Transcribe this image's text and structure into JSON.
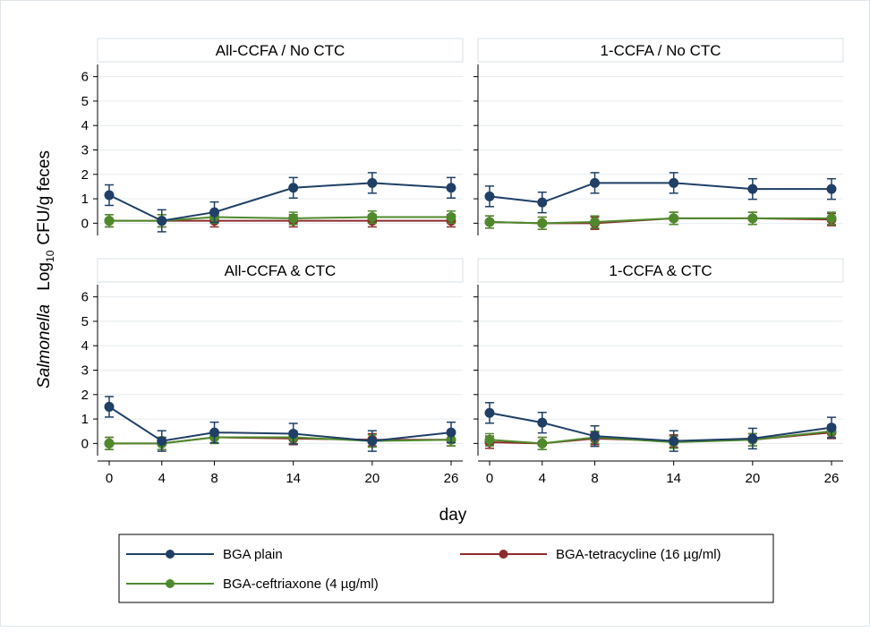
{
  "figure": {
    "ylabel_prefix": "Salmonella",
    "ylabel_log": "Log",
    "ylabel_sub": "10",
    "ylabel_suffix": "CFU/g feces",
    "xlabel": "day"
  },
  "colors": {
    "BGA plain": "#1f3f66",
    "BGA-tetracycline (16 µg/ml)": "#8c2b2b",
    "BGA-ceftriaxone (4 µg/ml)": "#4e8a2c"
  },
  "legend": [
    {
      "name": "BGA plain"
    },
    {
      "name": "BGA-tetracycline (16 µg/ml)"
    },
    {
      "name": "BGA-ceftriaxone (4 µg/ml)"
    }
  ],
  "chart_data": [
    {
      "type": "line",
      "title": "All-CCFA / No CTC",
      "x": [
        0,
        4,
        8,
        14,
        20,
        26
      ],
      "xticks": [
        "0",
        "4",
        "8",
        "14",
        "20",
        "26"
      ],
      "ylim": [
        -0.5,
        6.5
      ],
      "yticks": [
        "0",
        "1",
        "2",
        "3",
        "4",
        "5",
        "6"
      ],
      "grid": true,
      "series": [
        {
          "name": "BGA plain",
          "values": [
            1.15,
            0.1,
            0.45,
            1.45,
            1.65,
            1.45
          ],
          "err": [
            0.42,
            0.45,
            0.42,
            0.42,
            0.42,
            0.42
          ]
        },
        {
          "name": "BGA-tetracycline (16 µg/ml)",
          "values": [
            0.1,
            0.1,
            0.1,
            0.1,
            0.1,
            0.1
          ],
          "err": [
            0.25,
            0.25,
            0.25,
            0.25,
            0.25,
            0.25
          ]
        },
        {
          "name": "BGA-ceftriaxone (4 µg/ml)",
          "values": [
            0.1,
            0.1,
            0.25,
            0.2,
            0.25,
            0.25
          ],
          "err": [
            0.25,
            0.25,
            0.25,
            0.25,
            0.25,
            0.25
          ]
        }
      ]
    },
    {
      "type": "line",
      "title": "1-CCFA / No CTC",
      "x": [
        0,
        4,
        8,
        14,
        20,
        26
      ],
      "xticks": [
        "0",
        "4",
        "8",
        "14",
        "20",
        "26"
      ],
      "ylim": [
        -0.5,
        6.5
      ],
      "yticks": [
        "0",
        "1",
        "2",
        "3",
        "4",
        "5",
        "6"
      ],
      "grid": true,
      "series": [
        {
          "name": "BGA plain",
          "values": [
            1.1,
            0.85,
            1.65,
            1.65,
            1.4,
            1.4
          ],
          "err": [
            0.42,
            0.42,
            0.42,
            0.42,
            0.42,
            0.42
          ]
        },
        {
          "name": "BGA-tetracycline (16 µg/ml)",
          "values": [
            0.05,
            0.0,
            0.0,
            0.2,
            0.2,
            0.15
          ],
          "err": [
            0.25,
            0.25,
            0.25,
            0.25,
            0.25,
            0.25
          ]
        },
        {
          "name": "BGA-ceftriaxone (4 µg/ml)",
          "values": [
            0.05,
            0.0,
            0.05,
            0.2,
            0.2,
            0.2
          ],
          "err": [
            0.25,
            0.25,
            0.25,
            0.25,
            0.25,
            0.25
          ]
        }
      ]
    },
    {
      "type": "line",
      "title": "All-CCFA & CTC",
      "x": [
        0,
        4,
        8,
        14,
        20,
        26
      ],
      "xticks": [
        "0",
        "4",
        "8",
        "14",
        "20",
        "26"
      ],
      "ylim": [
        -0.5,
        6.5
      ],
      "yticks": [
        "0",
        "1",
        "2",
        "3",
        "4",
        "5",
        "6"
      ],
      "grid": true,
      "series": [
        {
          "name": "BGA plain",
          "values": [
            1.5,
            0.1,
            0.45,
            0.4,
            0.1,
            0.45
          ],
          "err": [
            0.42,
            0.42,
            0.42,
            0.42,
            0.42,
            0.42
          ]
        },
        {
          "name": "BGA-tetracycline (16 µg/ml)",
          "values": [
            0.0,
            0.0,
            0.25,
            0.2,
            0.15,
            0.15
          ],
          "err": [
            0.25,
            0.25,
            0.25,
            0.25,
            0.25,
            0.25
          ]
        },
        {
          "name": "BGA-ceftriaxone (4 µg/ml)",
          "values": [
            0.0,
            0.0,
            0.25,
            0.25,
            0.1,
            0.15
          ],
          "err": [
            0.25,
            0.25,
            0.25,
            0.25,
            0.25,
            0.25
          ]
        }
      ]
    },
    {
      "type": "line",
      "title": "1-CCFA & CTC",
      "x": [
        0,
        4,
        8,
        14,
        20,
        26
      ],
      "xticks": [
        "0",
        "4",
        "8",
        "14",
        "20",
        "26"
      ],
      "ylim": [
        -0.5,
        6.5
      ],
      "yticks": [
        "0",
        "1",
        "2",
        "3",
        "4",
        "5",
        "6"
      ],
      "grid": true,
      "series": [
        {
          "name": "BGA plain",
          "values": [
            1.25,
            0.85,
            0.3,
            0.1,
            0.2,
            0.65
          ],
          "err": [
            0.42,
            0.42,
            0.42,
            0.42,
            0.42,
            0.42
          ]
        },
        {
          "name": "BGA-tetracycline (16 µg/ml)",
          "values": [
            0.05,
            0.0,
            0.2,
            0.1,
            0.15,
            0.45
          ],
          "err": [
            0.25,
            0.25,
            0.25,
            0.25,
            0.25,
            0.25
          ]
        },
        {
          "name": "BGA-ceftriaxone (4 µg/ml)",
          "values": [
            0.15,
            0.0,
            0.25,
            0.05,
            0.15,
            0.5
          ],
          "err": [
            0.25,
            0.25,
            0.25,
            0.25,
            0.25,
            0.25
          ]
        }
      ]
    }
  ]
}
